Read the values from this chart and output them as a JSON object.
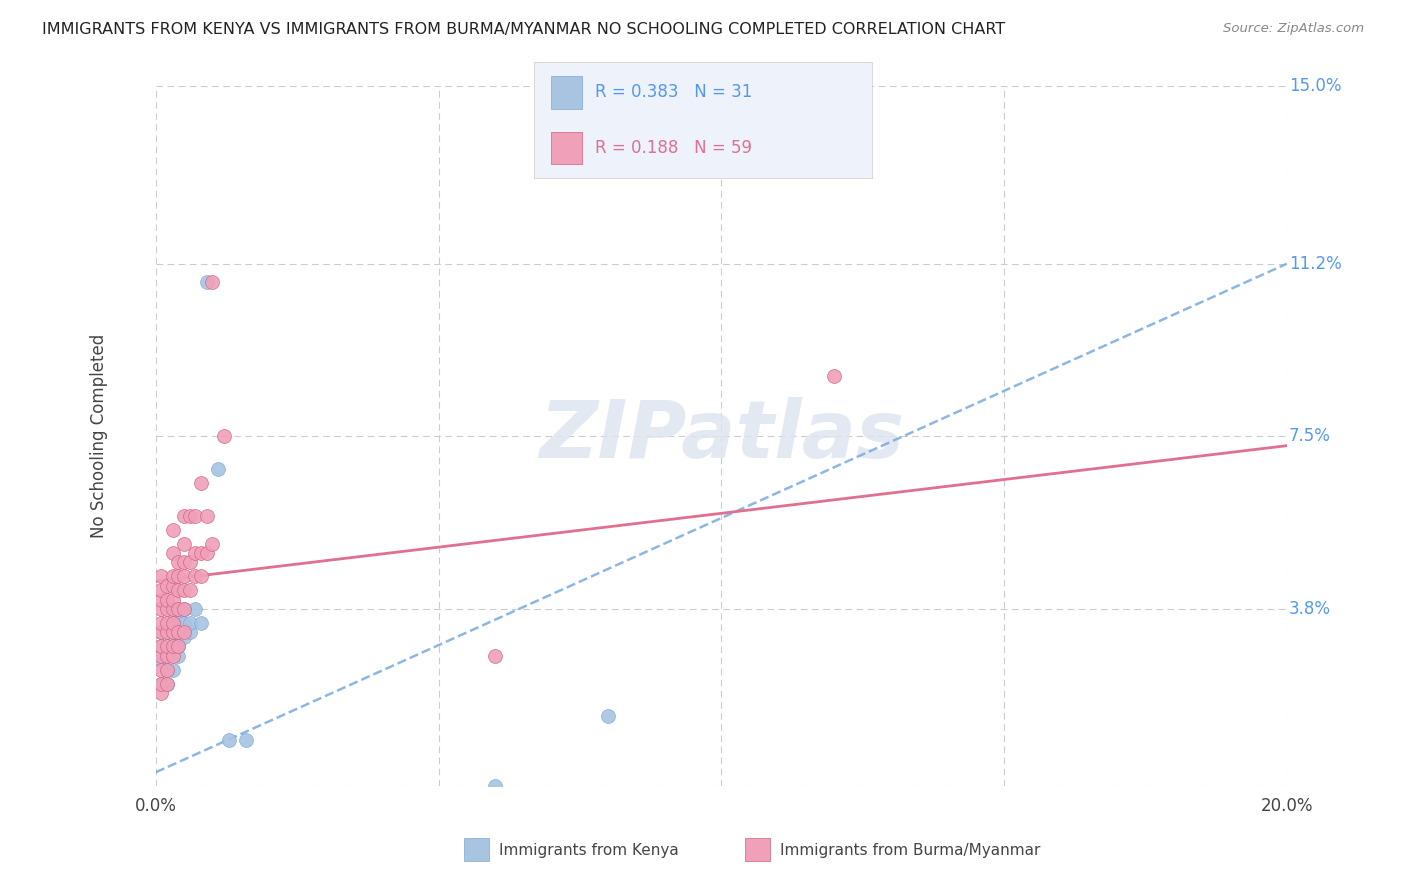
{
  "title": "IMMIGRANTS FROM KENYA VS IMMIGRANTS FROM BURMA/MYANMAR NO SCHOOLING COMPLETED CORRELATION CHART",
  "source": "Source: ZipAtlas.com",
  "ylabel": "No Schooling Completed",
  "legend_label1": "Immigrants from Kenya",
  "legend_label2": "Immigrants from Burma/Myanmar",
  "R1": 0.383,
  "N1": 31,
  "R2": 0.188,
  "N2": 59,
  "color1": "#a8c4e0",
  "color2": "#f0a0b8",
  "trendline1_color": "#7aaadd",
  "trendline2_color": "#e07090",
  "xlim": [
    0.0,
    0.2
  ],
  "ylim": [
    0.0,
    0.15
  ],
  "yticks": [
    0.0,
    0.038,
    0.075,
    0.112,
    0.15
  ],
  "ytick_labels": [
    "",
    "3.8%",
    "7.5%",
    "11.2%",
    "15.0%"
  ],
  "xtick_vals": [
    0.0,
    0.05,
    0.1,
    0.15,
    0.2
  ],
  "xtick_show": [
    0.0,
    0.2
  ],
  "watermark": "ZIPatlas",
  "trendline1_x0": 0.0,
  "trendline1_y0": 0.003,
  "trendline1_x1": 0.2,
  "trendline1_y1": 0.112,
  "trendline2_x0": 0.0,
  "trendline2_y0": 0.044,
  "trendline2_x1": 0.2,
  "trendline2_y1": 0.073,
  "kenya_x": [
    0.001,
    0.001,
    0.001,
    0.001,
    0.002,
    0.002,
    0.002,
    0.002,
    0.003,
    0.003,
    0.003,
    0.003,
    0.003,
    0.004,
    0.004,
    0.004,
    0.004,
    0.004,
    0.005,
    0.005,
    0.005,
    0.006,
    0.006,
    0.007,
    0.008,
    0.009,
    0.011,
    0.013,
    0.016,
    0.06,
    0.08
  ],
  "kenya_y": [
    0.022,
    0.027,
    0.03,
    0.033,
    0.022,
    0.025,
    0.028,
    0.033,
    0.025,
    0.03,
    0.033,
    0.035,
    0.038,
    0.028,
    0.03,
    0.033,
    0.036,
    0.038,
    0.032,
    0.035,
    0.038,
    0.033,
    0.035,
    0.038,
    0.035,
    0.108,
    0.068,
    0.01,
    0.01,
    0.0,
    0.015
  ],
  "burma_x": [
    0.001,
    0.001,
    0.001,
    0.001,
    0.001,
    0.001,
    0.001,
    0.001,
    0.001,
    0.001,
    0.001,
    0.002,
    0.002,
    0.002,
    0.002,
    0.002,
    0.002,
    0.002,
    0.002,
    0.002,
    0.003,
    0.003,
    0.003,
    0.003,
    0.003,
    0.003,
    0.003,
    0.003,
    0.003,
    0.003,
    0.004,
    0.004,
    0.004,
    0.004,
    0.004,
    0.004,
    0.005,
    0.005,
    0.005,
    0.005,
    0.005,
    0.005,
    0.005,
    0.006,
    0.006,
    0.006,
    0.007,
    0.007,
    0.007,
    0.008,
    0.008,
    0.008,
    0.009,
    0.009,
    0.01,
    0.01,
    0.012,
    0.06,
    0.12
  ],
  "burma_y": [
    0.02,
    0.022,
    0.025,
    0.028,
    0.03,
    0.033,
    0.035,
    0.038,
    0.04,
    0.042,
    0.045,
    0.022,
    0.025,
    0.028,
    0.03,
    0.033,
    0.035,
    0.038,
    0.04,
    0.043,
    0.028,
    0.03,
    0.033,
    0.035,
    0.038,
    0.04,
    0.043,
    0.045,
    0.05,
    0.055,
    0.03,
    0.033,
    0.038,
    0.042,
    0.045,
    0.048,
    0.033,
    0.038,
    0.042,
    0.045,
    0.048,
    0.052,
    0.058,
    0.042,
    0.048,
    0.058,
    0.045,
    0.05,
    0.058,
    0.045,
    0.05,
    0.065,
    0.05,
    0.058,
    0.052,
    0.108,
    0.075,
    0.028,
    0.088
  ]
}
